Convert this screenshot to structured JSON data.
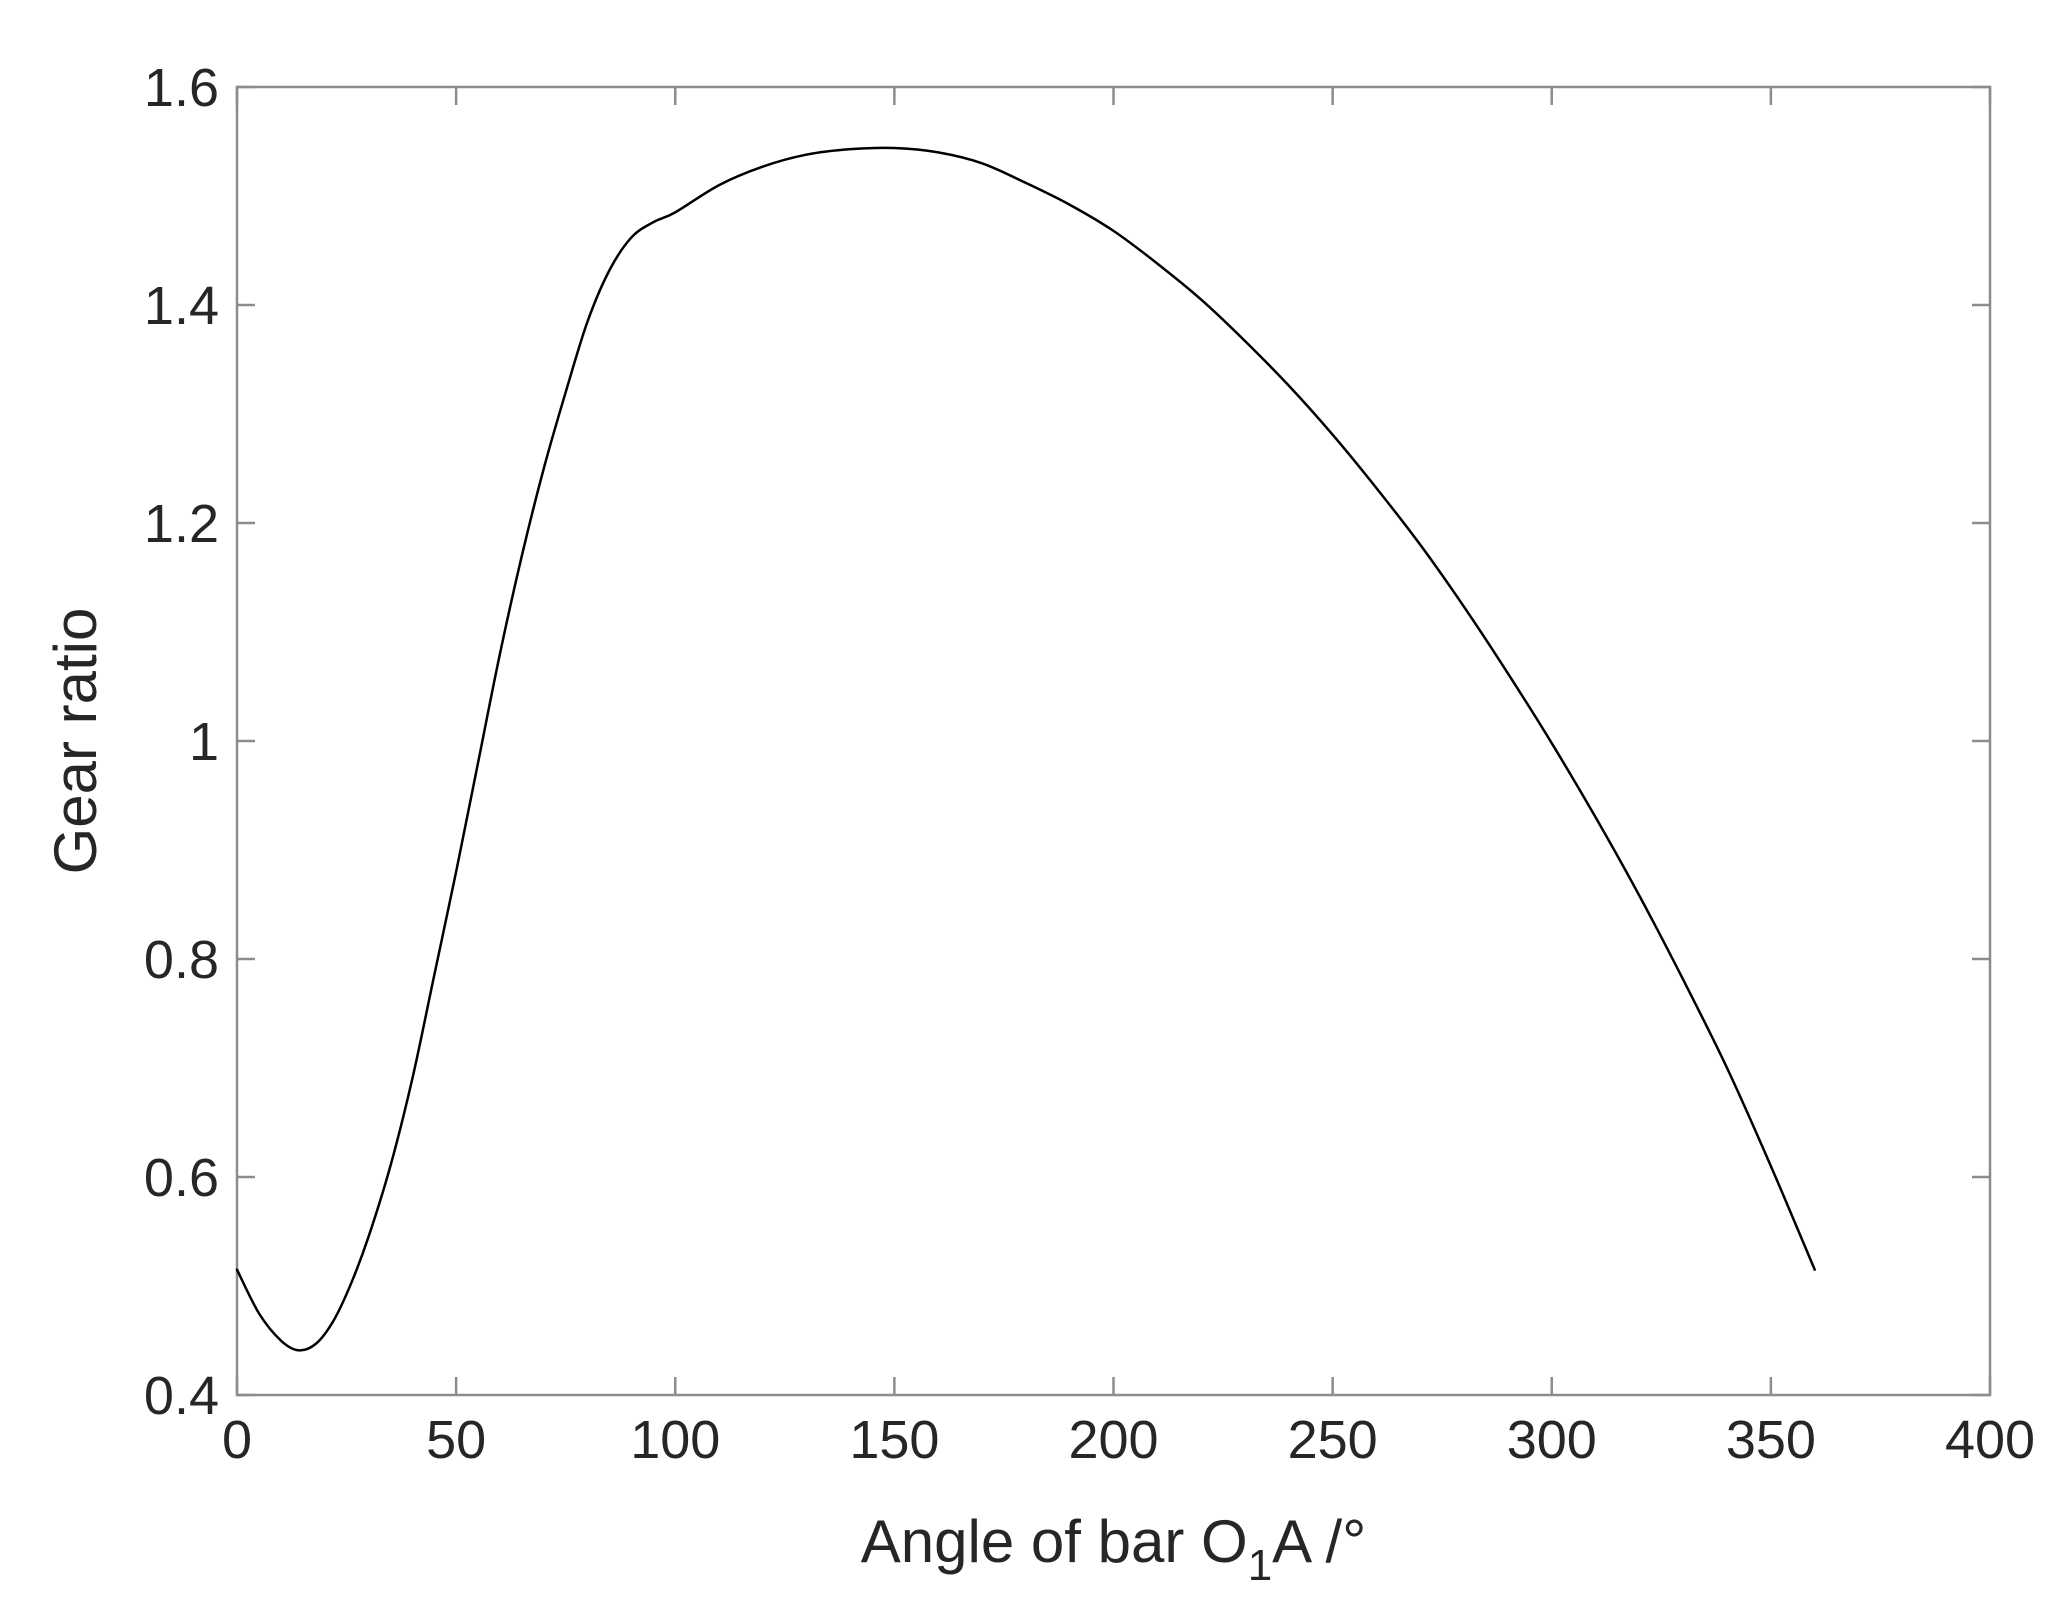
{
  "chart_data": {
    "type": "line",
    "title": "",
    "xlabel": "Angle of bar O",
    "xlabel_subscript": "1",
    "xlabel_suffix": "A /°",
    "ylabel": "Gear ratio",
    "xlim": [
      0,
      400
    ],
    "ylim": [
      0.4,
      1.6
    ],
    "x_ticks": [
      0,
      50,
      100,
      150,
      200,
      250,
      300,
      350,
      400
    ],
    "y_ticks": [
      0.4,
      0.6,
      0.8,
      1.0,
      1.2,
      1.4,
      1.6
    ],
    "x_tick_labels": [
      "0",
      "50",
      "100",
      "150",
      "200",
      "250",
      "300",
      "350",
      "400"
    ],
    "y_tick_labels": [
      "0.4",
      "0.6",
      "0.8",
      "1",
      "1.2",
      "1.4",
      "1.6"
    ],
    "grid": false,
    "box": true,
    "series": [
      {
        "color": "#000000",
        "x": [
          0,
          5,
          10,
          14,
          18,
          22,
          26,
          30,
          35,
          40,
          45,
          50,
          55,
          60,
          65,
          70,
          75,
          80,
          85,
          90,
          95,
          100,
          110,
          120,
          130,
          140,
          150,
          160,
          170,
          180,
          190,
          200,
          210,
          220,
          230,
          240,
          250,
          260,
          270,
          280,
          290,
          300,
          310,
          320,
          330,
          340,
          350,
          360
        ],
        "y": [
          0.515,
          0.475,
          0.45,
          0.441,
          0.447,
          0.468,
          0.502,
          0.545,
          0.61,
          0.69,
          0.785,
          0.88,
          0.98,
          1.08,
          1.17,
          1.25,
          1.32,
          1.385,
          1.432,
          1.462,
          1.476,
          1.485,
          1.51,
          1.527,
          1.538,
          1.543,
          1.544,
          1.54,
          1.53,
          1.512,
          1.492,
          1.468,
          1.438,
          1.405,
          1.367,
          1.326,
          1.281,
          1.232,
          1.18,
          1.123,
          1.062,
          0.998,
          0.93,
          0.858,
          0.781,
          0.7,
          0.61,
          0.515
        ]
      }
    ]
  }
}
